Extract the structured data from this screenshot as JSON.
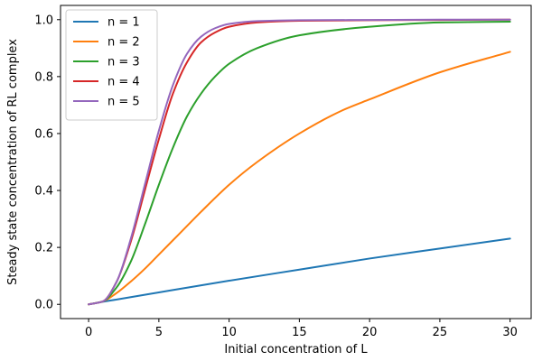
{
  "chart_data": {
    "type": "line",
    "xlabel": "Initial concentration of L",
    "ylabel": "Steady state concentration of RL complex",
    "xlim": [
      -2,
      31.5
    ],
    "ylim": [
      -0.05,
      1.05
    ],
    "xticks": [
      0,
      5,
      10,
      15,
      20,
      25,
      30
    ],
    "yticks": [
      0.0,
      0.2,
      0.4,
      0.6,
      0.8,
      1.0
    ],
    "xtick_labels": [
      "0",
      "5",
      "10",
      "15",
      "20",
      "25",
      "30"
    ],
    "ytick_labels": [
      "0.0",
      "0.2",
      "0.4",
      "0.6",
      "0.8",
      "1.0"
    ],
    "grid": false,
    "legend_position": "top-left",
    "series": [
      {
        "name": "n = 1",
        "color": "#1f77b4",
        "x": [
          0,
          1,
          2,
          5,
          10,
          15,
          20,
          25,
          30
        ],
        "y": [
          0.0,
          0.009,
          0.017,
          0.042,
          0.083,
          0.122,
          0.161,
          0.196,
          0.231
        ]
      },
      {
        "name": "n = 2",
        "color": "#ff7f0e",
        "x": [
          0,
          1,
          2,
          3,
          4,
          5,
          6,
          7,
          8,
          10,
          12,
          15,
          18,
          20,
          25,
          30
        ],
        "y": [
          0.0,
          0.01,
          0.04,
          0.08,
          0.125,
          0.175,
          0.225,
          0.275,
          0.325,
          0.42,
          0.5,
          0.6,
          0.68,
          0.72,
          0.815,
          0.887
        ]
      },
      {
        "name": "n = 3",
        "color": "#2ca02c",
        "x": [
          0,
          1,
          2,
          3,
          4,
          5,
          6,
          7,
          8,
          9,
          10,
          12,
          15,
          20,
          25,
          30
        ],
        "y": [
          0.0,
          0.01,
          0.06,
          0.15,
          0.28,
          0.42,
          0.55,
          0.66,
          0.74,
          0.8,
          0.845,
          0.9,
          0.945,
          0.975,
          0.99,
          0.993
        ]
      },
      {
        "name": "n = 4",
        "color": "#d62728",
        "x": [
          0,
          1,
          2,
          3,
          4,
          5,
          6,
          7,
          8,
          9,
          10,
          12,
          15,
          20,
          25,
          30
        ],
        "y": [
          0.0,
          0.01,
          0.08,
          0.22,
          0.4,
          0.58,
          0.74,
          0.85,
          0.92,
          0.955,
          0.975,
          0.99,
          0.996,
          0.998,
          0.999,
          1.0
        ]
      },
      {
        "name": "n = 5",
        "color": "#9467bd",
        "x": [
          0,
          1,
          2,
          3,
          4,
          5,
          6,
          7,
          8,
          9,
          10,
          12,
          15,
          20,
          25,
          30
        ],
        "y": [
          0.0,
          0.01,
          0.08,
          0.23,
          0.42,
          0.61,
          0.77,
          0.88,
          0.94,
          0.97,
          0.985,
          0.995,
          0.998,
          0.999,
          1.0,
          1.0
        ]
      }
    ]
  }
}
